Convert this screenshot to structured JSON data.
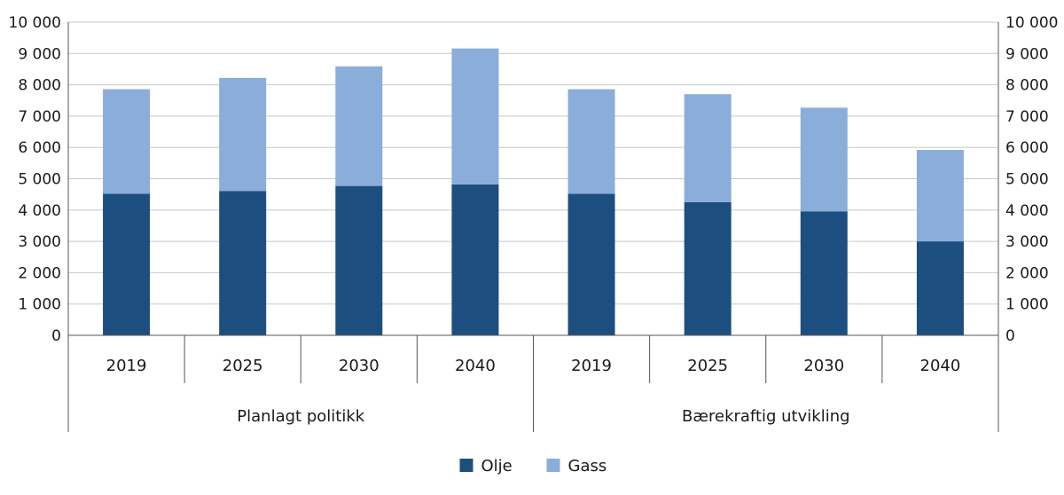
{
  "chart_data": {
    "type": "bar",
    "stacked": true,
    "groups": [
      {
        "label": "Planlagt politikk",
        "categories": [
          "2019",
          "2025",
          "2030",
          "2040"
        ]
      },
      {
        "label": "Bærekraftig utvikling",
        "categories": [
          "2019",
          "2025",
          "2030",
          "2040"
        ]
      }
    ],
    "series": [
      {
        "name": "Olje",
        "color": "#1c4f80",
        "values": [
          4520,
          4610,
          4770,
          4820,
          4520,
          4250,
          3960,
          3000
        ]
      },
      {
        "name": "Gass",
        "color": "#8aadda",
        "values": [
          3340,
          3610,
          3820,
          4340,
          3340,
          3450,
          3310,
          2920
        ]
      }
    ],
    "ylim": [
      0,
      10000
    ],
    "yticks": [
      "0",
      "1 000",
      "2 000",
      "3 000",
      "4 000",
      "5 000",
      "6 000",
      "7 000",
      "8 000",
      "9 000",
      "10 000"
    ],
    "ytick_values": [
      0,
      1000,
      2000,
      3000,
      4000,
      5000,
      6000,
      7000,
      8000,
      9000,
      10000
    ],
    "y_axis_both_sides": true,
    "grid": true,
    "legend_position": "bottom-center",
    "title": "",
    "xlabel": "",
    "ylabel": ""
  }
}
